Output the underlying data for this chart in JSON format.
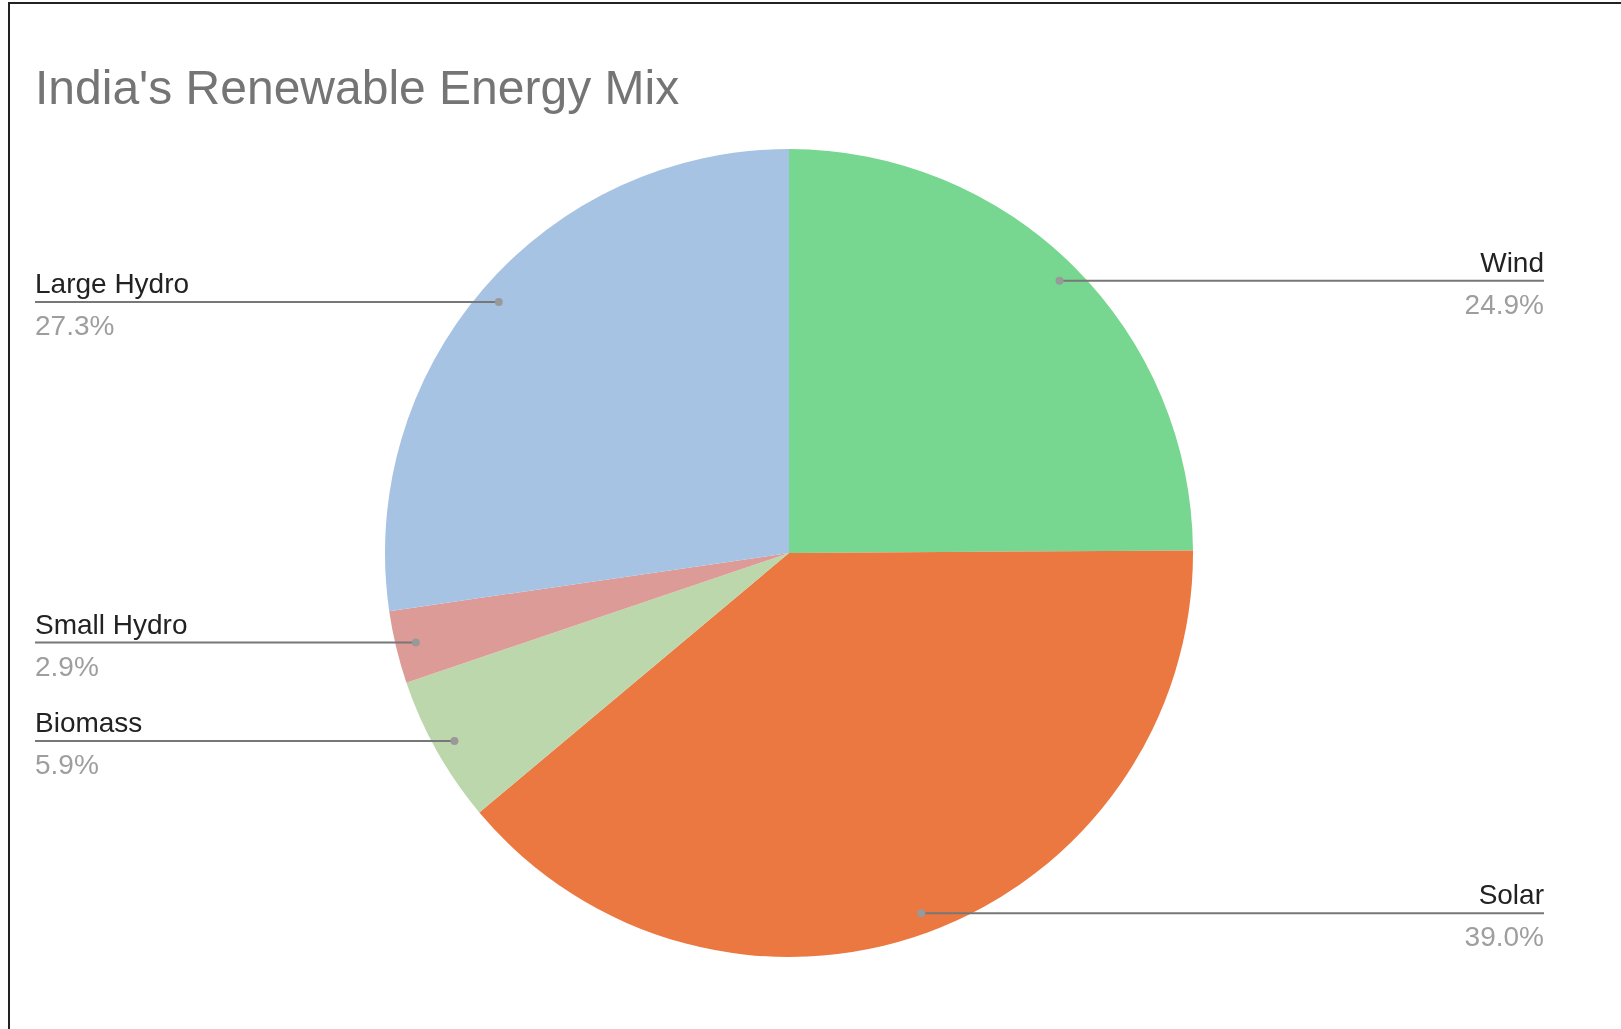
{
  "chart_data": {
    "type": "pie",
    "title": "India's Renewable Energy Mix",
    "categories": [
      "Wind",
      "Solar",
      "Biomass",
      "Small Hydro",
      "Large Hydro"
    ],
    "values": [
      24.9,
      39.0,
      5.9,
      2.9,
      27.3
    ],
    "colors": [
      "#77d68f",
      "#eb7841",
      "#bdd7ac",
      "#dd9b97",
      "#a6c3e3"
    ],
    "value_labels": [
      "24.9%",
      "39.0%",
      "5.9%",
      "2.9%",
      "27.3%"
    ]
  }
}
